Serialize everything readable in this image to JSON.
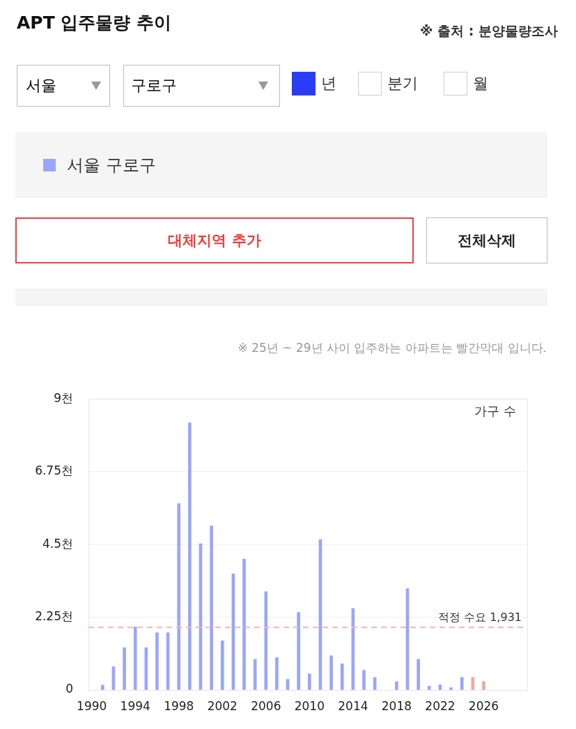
{
  "chart_data": {
    "type": "bar",
    "title": "APT 입주물량 추이",
    "ylabel": "가구 수",
    "annotations": [
      "※ 출처 : 분양물량조사",
      "※ 25년 ~ 29년 사이 입주하는 아파트는 빨간막대 입니다.",
      "서울",
      "구로구",
      "년",
      "분기",
      "월",
      "대체지역 추가",
      "전체삭제"
    ],
    "x": [
      1991,
      1992,
      1993,
      1994,
      1995,
      1996,
      1997,
      1998,
      1999,
      2000,
      2001,
      2002,
      2003,
      2004,
      2005,
      2006,
      2007,
      2008,
      2009,
      2010,
      2011,
      2012,
      2013,
      2014,
      2015,
      2016,
      2018,
      2019,
      2020,
      2021,
      2022,
      2023,
      2024,
      2025,
      2026
    ],
    "series": [
      {
        "name": "서울 구로구",
        "color": "#9aa6fa",
        "values": [
          0.15,
          0.72,
          1.31,
          1.95,
          1.31,
          1.77,
          1.77,
          5.76,
          8.26,
          4.52,
          5.07,
          1.52,
          3.59,
          4.05,
          0.95,
          3.04,
          1.0,
          0.33,
          2.4,
          0.5,
          4.65,
          1.06,
          0.81,
          2.52,
          0.61,
          0.39,
          0.26,
          3.13,
          0.95,
          0.12,
          0.16,
          0.07,
          0.39,
          0.39,
          0.26
        ],
        "colors": [
          "#9aa6fa",
          "#9aa6fa",
          "#9aa6fa",
          "#9aa6fa",
          "#9aa6fa",
          "#9aa6fa",
          "#9aa6fa",
          "#9aa6fa",
          "#9aa6fa",
          "#9aa6fa",
          "#9aa6fa",
          "#9aa6fa",
          "#9aa6fa",
          "#9aa6fa",
          "#9aa6fa",
          "#9aa6fa",
          "#9aa6fa",
          "#9aa6fa",
          "#9aa6fa",
          "#9aa6fa",
          "#9aa6fa",
          "#9aa6fa",
          "#9aa6fa",
          "#9aa6fa",
          "#9aa6fa",
          "#9aa6fa",
          "#9aa6fa",
          "#9aa6fa",
          "#9aa6fa",
          "#9aa6fa",
          "#9aa6fa",
          "#9aa6fa",
          "#9aa6fa",
          "#f4a6a0",
          "#f4a6a0"
        ]
      }
    ],
    "xlim": [
      1989.7,
      2030
    ],
    "xticks": [
      1990,
      1994,
      1998,
      2002,
      2006,
      2010,
      2014,
      2018,
      2022,
      2026
    ],
    "ylim": [
      0,
      9
    ],
    "yticks": [
      {
        "value": 0,
        "label": "0"
      },
      {
        "value": 2.25,
        "label": "2.25천"
      },
      {
        "value": 4.5,
        "label": "4.5천"
      },
      {
        "value": 6.75,
        "label": "6.75천"
      },
      {
        "value": 9,
        "label": "9천"
      }
    ],
    "ref_lines": [
      {
        "axis": "y",
        "value": 1.931,
        "label": "적정 수요 1,931",
        "color": "#f8b4b0",
        "line_style": "dashed"
      }
    ],
    "grid": "y",
    "legend": "top"
  }
}
